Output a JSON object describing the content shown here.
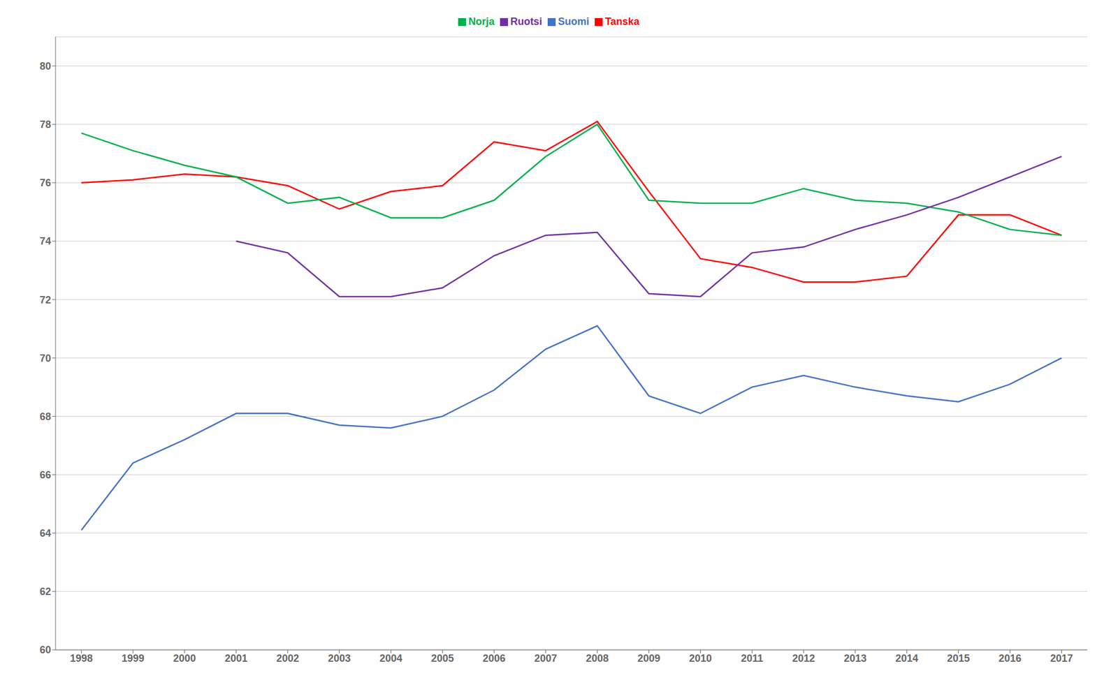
{
  "chart_data": {
    "type": "line",
    "x": [
      1998,
      1999,
      2000,
      2001,
      2002,
      2003,
      2004,
      2005,
      2006,
      2007,
      2008,
      2009,
      2010,
      2011,
      2012,
      2013,
      2014,
      2015,
      2016,
      2017
    ],
    "series": [
      {
        "name": "Suomi",
        "color": "#4472C4",
        "values": [
          64.1,
          66.4,
          67.2,
          68.1,
          68.1,
          67.7,
          67.6,
          68.0,
          68.9,
          70.3,
          71.1,
          68.7,
          68.1,
          69.0,
          69.4,
          69.0,
          68.7,
          68.5,
          69.1,
          70.0
        ]
      },
      {
        "name": "Tanska",
        "color": "#FF0000",
        "values": [
          76.0,
          76.1,
          76.3,
          76.2,
          75.9,
          75.1,
          75.7,
          75.9,
          77.4,
          77.1,
          78.1,
          75.7,
          73.4,
          73.1,
          72.6,
          72.6,
          72.8,
          74.9,
          74.9,
          74.2
        ]
      },
      {
        "name": "Norja",
        "color": "#00B050",
        "values": [
          77.7,
          77.1,
          76.6,
          76.2,
          75.3,
          75.5,
          74.8,
          74.8,
          75.4,
          76.9,
          78.0,
          75.4,
          75.3,
          75.3,
          75.8,
          75.4,
          75.3,
          75.0,
          74.4,
          74.2
        ]
      },
      {
        "name": "Ruotsi",
        "color": "#7030A0",
        "values": [
          null,
          null,
          null,
          74.0,
          73.6,
          72.1,
          72.1,
          72.4,
          73.5,
          74.2,
          74.3,
          72.2,
          72.1,
          73.6,
          73.8,
          74.4,
          74.9,
          75.5,
          76.2,
          76.9
        ]
      }
    ],
    "xlim": [
      1997.5,
      2017.5
    ],
    "xticks": [
      1998,
      1999,
      2000,
      2001,
      2002,
      2003,
      2004,
      2005,
      2006,
      2007,
      2008,
      2009,
      2010,
      2011,
      2012,
      2013,
      2014,
      2015,
      2016,
      2017
    ],
    "ylim": [
      60,
      81
    ],
    "yticks": [
      60,
      62,
      64,
      66,
      68,
      70,
      72,
      74,
      76,
      78,
      80
    ],
    "grid": true,
    "legend": "top"
  }
}
